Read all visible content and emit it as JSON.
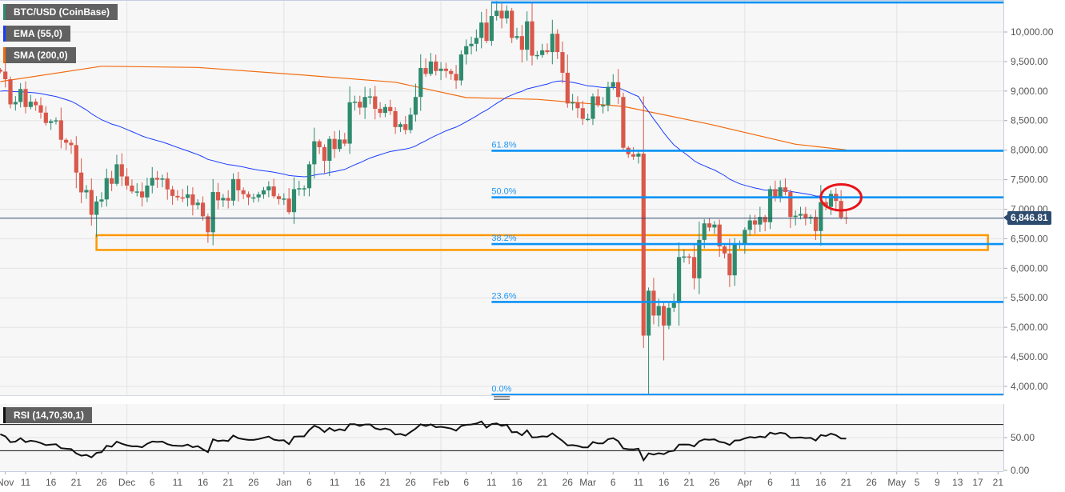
{
  "legend": {
    "symbol": {
      "label": "BTC/USD (CoinBase)",
      "color": "#2e8b6e"
    },
    "ema": {
      "label": "EMA (55,0)",
      "color": "#1a3cff"
    },
    "sma": {
      "label": "SMA (200,0)",
      "color": "#f26b0f"
    }
  },
  "rsi_panel": {
    "label": "RSI (14,70,30,1)",
    "overbought": 70,
    "oversold": 30,
    "ticks": [
      0,
      50
    ],
    "tick_labels": [
      "0.00",
      "50.00"
    ]
  },
  "last_price": {
    "value": 6846.81,
    "label": "6,846.81",
    "color": "#2d4b6e"
  },
  "chart_data": {
    "type": "candlestick",
    "title": "BTC/USD (CoinBase)",
    "interval": "1D",
    "colors": {
      "up": "#2e8b6e",
      "down": "#d9584a",
      "ema": "#1a3cff",
      "sma": "#f26b0f",
      "fib": "#0a92f5",
      "zone": "#ff9800",
      "annotation": "#e8141a",
      "grid": "#e3e3e3"
    },
    "ylim": [
      3800,
      10550
    ],
    "y_ticks": [
      4000,
      4500,
      5000,
      5500,
      6000,
      6500,
      7000,
      7500,
      8000,
      8500,
      9000,
      9500,
      10000
    ],
    "y_tick_labels": [
      "4,000.00",
      "4,500.00",
      "5,000.00",
      "5,500.00",
      "6,000.00",
      "6,500.00",
      "7,000.00",
      "7,500.00",
      "8,000.00",
      "8,500.00",
      "9,000.00",
      "9,500.00",
      "10,000.00"
    ],
    "x_ticks": [
      {
        "date": "2019-11-07",
        "label": "Nov"
      },
      {
        "date": "2019-11-11",
        "label": "11"
      },
      {
        "date": "2019-11-16",
        "label": "16"
      },
      {
        "date": "2019-11-21",
        "label": "21"
      },
      {
        "date": "2019-11-26",
        "label": "26"
      },
      {
        "date": "2019-12-01",
        "label": "Dec"
      },
      {
        "date": "2019-12-06",
        "label": "6"
      },
      {
        "date": "2019-12-11",
        "label": "11"
      },
      {
        "date": "2019-12-16",
        "label": "16"
      },
      {
        "date": "2019-12-21",
        "label": "21"
      },
      {
        "date": "2019-12-26",
        "label": "26"
      },
      {
        "date": "2020-01-01",
        "label": "Jan"
      },
      {
        "date": "2020-01-06",
        "label": "6"
      },
      {
        "date": "2020-01-11",
        "label": "11"
      },
      {
        "date": "2020-01-16",
        "label": "16"
      },
      {
        "date": "2020-01-21",
        "label": "21"
      },
      {
        "date": "2020-01-26",
        "label": "26"
      },
      {
        "date": "2020-02-01",
        "label": "Feb"
      },
      {
        "date": "2020-02-06",
        "label": "6"
      },
      {
        "date": "2020-02-11",
        "label": "11"
      },
      {
        "date": "2020-02-16",
        "label": "16"
      },
      {
        "date": "2020-02-21",
        "label": "21"
      },
      {
        "date": "2020-02-26",
        "label": "26"
      },
      {
        "date": "2020-03-01",
        "label": "Mar"
      },
      {
        "date": "2020-03-06",
        "label": "6"
      },
      {
        "date": "2020-03-11",
        "label": "11"
      },
      {
        "date": "2020-03-16",
        "label": "16"
      },
      {
        "date": "2020-03-21",
        "label": "21"
      },
      {
        "date": "2020-03-26",
        "label": "26"
      },
      {
        "date": "2020-04-01",
        "label": "Apr"
      },
      {
        "date": "2020-04-06",
        "label": "6"
      },
      {
        "date": "2020-04-11",
        "label": "11"
      },
      {
        "date": "2020-04-16",
        "label": "16"
      },
      {
        "date": "2020-04-21",
        "label": "21"
      },
      {
        "date": "2020-04-26",
        "label": "26"
      },
      {
        "date": "2020-05-01",
        "label": "May"
      },
      {
        "date": "2020-05-05",
        "label": "5"
      },
      {
        "date": "2020-05-09",
        "label": "9"
      },
      {
        "date": "2020-05-13",
        "label": "13"
      },
      {
        "date": "2020-05-17",
        "label": "17"
      },
      {
        "date": "2020-05-21",
        "label": "21"
      }
    ],
    "month_gridlines": [
      "2019-12-01",
      "2020-01-01",
      "2020-02-01",
      "2020-03-01",
      "2020-04-01",
      "2020-05-01"
    ],
    "close_by_month": {
      "2019-11": [
        null,
        null,
        null,
        null,
        null,
        9330,
        9200,
        8775,
        8815,
        9035,
        8730,
        8820,
        8760,
        8635,
        8460,
        8490,
        8505,
        8175,
        8125,
        8085,
        7620,
        7285,
        7325,
        6905,
        7130,
        7165,
        7525,
        7430,
        7760,
        7555
      ],
      "2019-12": [
        7400,
        7300,
        7300,
        7200,
        7400,
        7530,
        7500,
        7520,
        7335,
        7225,
        7200,
        7190,
        7250,
        7070,
        7110,
        6880,
        6610,
        7290,
        7150,
        7190,
        7145,
        7510,
        7320,
        7255,
        7200,
        7200,
        7250,
        7320,
        7385,
        7220,
        7170
      ],
      "2020-01": [
        7180,
        6950,
        7340,
        7355,
        7355,
        7760,
        8150,
        8050,
        7820,
        8190,
        8020,
        8180,
        8110,
        8810,
        8820,
        8720,
        8900,
        8910,
        8700,
        8630,
        8730,
        8660,
        8390,
        8440,
        8340,
        8600,
        8900,
        9390,
        9290,
        9500,
        9340
      ],
      "2020-02": [
        9380,
        9340,
        9290,
        9180,
        9620,
        9760,
        9800,
        9900,
        10160,
        9850,
        10270,
        10360,
        10230,
        10360,
        9900,
        9930,
        9700,
        10180,
        9600,
        9610,
        9690,
        9660,
        9970,
        9660,
        9310,
        8790,
        8810,
        8710,
        8530
      ],
      "2020-03": [
        8530,
        8910,
        8760,
        8760,
        9070,
        9150,
        8900,
        8040,
        7930,
        7890,
        7940,
        4860,
        5620,
        5200,
        5360,
        5030,
        5330,
        5410,
        6190,
        6200,
        6190,
        5830,
        6480,
        6760,
        6690,
        6740,
        6370,
        6250,
        5880,
        6400,
        6420
      ],
      "2020-04": [
        6650,
        6810,
        6740,
        6870,
        6780,
        7340,
        7200,
        7370,
        7290,
        6870,
        6890,
        6920,
        6850,
        6870,
        6630,
        7120,
        7040,
        7260,
        7140,
        6860,
        6846.81
      ]
    },
    "notable_extremes": {
      "lows": {
        "2020-03-12": 4650,
        "2020-03-13": 3858,
        "2020-03-16": 4440,
        "2019-12-17": 6430,
        "2019-11-25": 6530
      },
      "highs": {
        "2020-02-13": 10500,
        "2020-02-14": 10450
      }
    },
    "sma200": [
      {
        "date": "2019-11-06",
        "value": 9160
      },
      {
        "date": "2019-11-26",
        "value": 9420
      },
      {
        "date": "2019-12-15",
        "value": 9400
      },
      {
        "date": "2020-01-05",
        "value": 9270
      },
      {
        "date": "2020-01-23",
        "value": 9150
      },
      {
        "date": "2020-02-06",
        "value": 8890
      },
      {
        "date": "2020-02-20",
        "value": 8860
      },
      {
        "date": "2020-03-08",
        "value": 8740
      },
      {
        "date": "2020-03-25",
        "value": 8440
      },
      {
        "date": "2020-04-11",
        "value": 8100
      },
      {
        "date": "2020-04-21",
        "value": 8005
      }
    ],
    "ema55": {
      "period": 55,
      "initial": 8985
    },
    "fibonacci": {
      "from_date": "2020-02-11",
      "levels": [
        {
          "ratio": "0.0%",
          "price": 3858
        },
        {
          "ratio": "23.6%",
          "price": 5430
        },
        {
          "ratio": "38.2%",
          "price": 6410
        },
        {
          "ratio": "50.0%",
          "price": 7200
        },
        {
          "ratio": "61.8%",
          "price": 7990
        },
        {
          "ratio": "100%",
          "price": 10500,
          "hide_label": true
        }
      ]
    },
    "support_zone": {
      "from_date": "2019-11-25",
      "to_date": "2020-05-19",
      "price_low": 6310,
      "price_high": 6560
    },
    "annotation_ellipse": {
      "from_date": "2020-04-16",
      "to_date": "2020-04-24",
      "price_low": 6980,
      "price_high": 7420
    },
    "rsi": {
      "period": 14,
      "ylim": [
        0,
        100
      ]
    }
  }
}
